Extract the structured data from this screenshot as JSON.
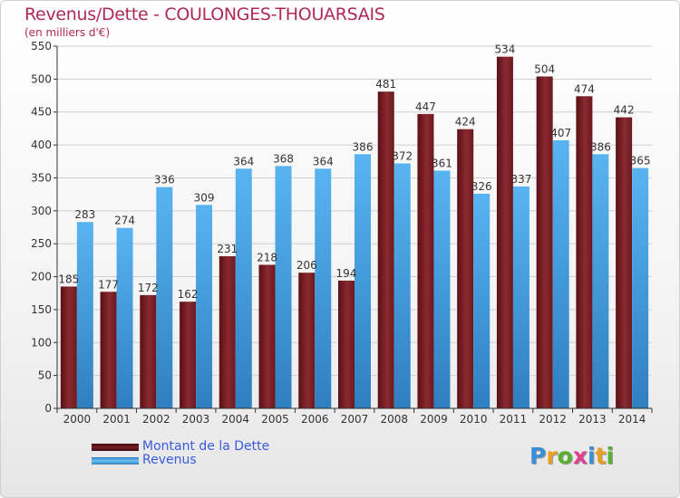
{
  "title": "Revenus/Dette - COULONGES-THOUARSAIS",
  "subtitle": "(en milliers d'€)",
  "colors": {
    "dette": "#7a1f26",
    "revenus": "#4aa8e8",
    "title": "#b0285a",
    "legend_text": "#3a5bdc"
  },
  "legend": [
    {
      "label": "Montant de la Dette",
      "color": "#7a1f26"
    },
    {
      "label": "Revenus",
      "color": "#4aa8e8"
    }
  ],
  "logo": {
    "letters": [
      "P",
      "r",
      "o",
      "x",
      "i",
      "t",
      "i"
    ],
    "colors": [
      "#3a8fd8",
      "#e8a020",
      "#58b030",
      "#e04090",
      "#3a8fd8",
      "#e8a020",
      "#58b030"
    ]
  },
  "chart_data": {
    "type": "bar",
    "categories": [
      "2000",
      "2001",
      "2002",
      "2003",
      "2004",
      "2005",
      "2006",
      "2007",
      "2008",
      "2009",
      "2010",
      "2011",
      "2012",
      "2013",
      "2014"
    ],
    "series": [
      {
        "name": "Montant de la Dette",
        "values": [
          185,
          177,
          172,
          162,
          231,
          218,
          206,
          194,
          481,
          447,
          424,
          534,
          504,
          474,
          442
        ]
      },
      {
        "name": "Revenus",
        "values": [
          283,
          274,
          336,
          309,
          364,
          368,
          364,
          386,
          372,
          361,
          326,
          337,
          407,
          386,
          365
        ]
      }
    ],
    "ylim": [
      0,
      550
    ],
    "yticks": [
      0,
      50,
      100,
      150,
      200,
      250,
      300,
      350,
      400,
      450,
      500,
      550
    ],
    "grid": true
  }
}
